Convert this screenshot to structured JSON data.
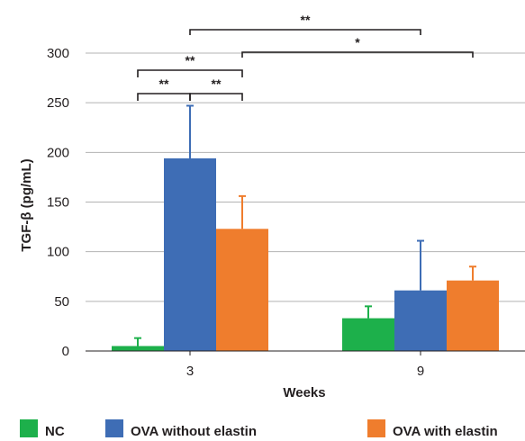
{
  "chart_data": {
    "type": "bar",
    "title": "",
    "xlabel": "Weeks",
    "ylabel": "TGF-β (pg/mL)",
    "categories": [
      "3",
      "9"
    ],
    "ylim": [
      0,
      300
    ],
    "yticks": [
      0,
      50,
      100,
      150,
      200,
      250,
      300
    ],
    "grid": true,
    "legend_position": "bottom",
    "series": [
      {
        "name": "NC",
        "color": "#1db04b",
        "values": [
          5,
          33
        ],
        "errors": [
          8,
          12
        ]
      },
      {
        "name": "OVA without elastin",
        "color": "#3e6db5",
        "values": [
          194,
          61
        ],
        "errors": [
          53,
          50
        ]
      },
      {
        "name": "OVA with elastin",
        "color": "#ef7d2d",
        "values": [
          123,
          71
        ],
        "errors": [
          33,
          14
        ]
      }
    ],
    "significance": [
      {
        "label": "**",
        "from": "3 - NC",
        "to": "3 - OVA without elastin"
      },
      {
        "label": "**",
        "from": "3 - OVA without elastin",
        "to": "3 - OVA with elastin"
      },
      {
        "label": "**",
        "from": "3 - NC",
        "to": "3 - OVA with elastin"
      },
      {
        "label": "*",
        "from": "3 - OVA with elastin",
        "to": "9 - OVA with elastin"
      },
      {
        "label": "**",
        "from": "3 - OVA without elastin",
        "to": "9 - OVA without elastin"
      }
    ]
  }
}
